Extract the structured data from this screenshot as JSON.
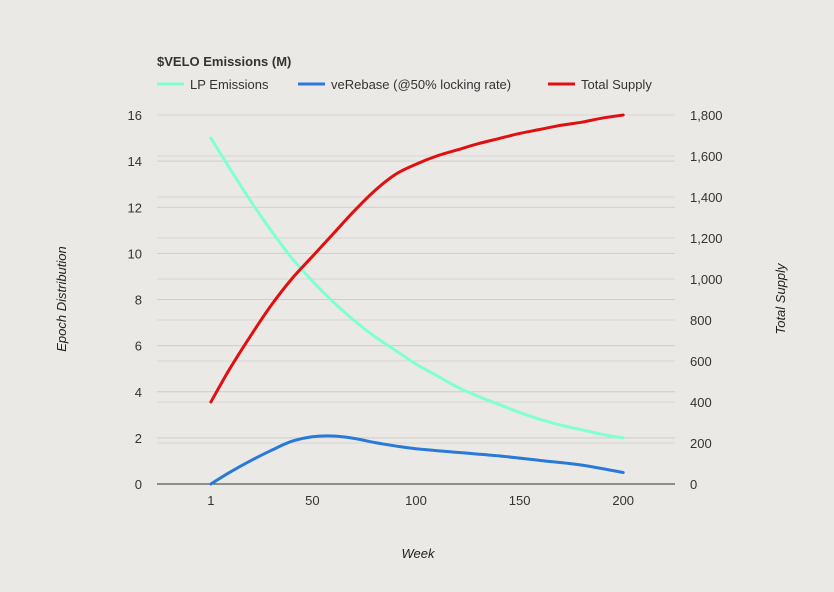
{
  "chart_data": {
    "type": "line",
    "title": "$VELO Emissions (M)",
    "xlabel": "Week",
    "ylabel_left": "Epoch Distribution",
    "ylabel_right": "Total Supply",
    "x_ticks": [
      "1",
      "50",
      "100",
      "150",
      "200"
    ],
    "y_left_ticks": [
      "0",
      "2",
      "4",
      "6",
      "8",
      "10",
      "12",
      "14",
      "16"
    ],
    "y_right_ticks": [
      "0",
      "200",
      "400",
      "600",
      "800",
      "1,000",
      "1,200",
      "1,400",
      "1,600",
      "1,800"
    ],
    "y_left_lim": [
      0,
      16
    ],
    "y_right_lim": [
      0,
      1800
    ],
    "x_lim": [
      -25,
      225
    ],
    "legend_position": "top",
    "grid": true,
    "series": [
      {
        "name": "LP Emissions",
        "axis": "left",
        "color": "#7fffd4",
        "x": [
          1,
          10,
          20,
          30,
          40,
          50,
          60,
          70,
          80,
          90,
          100,
          110,
          120,
          130,
          140,
          150,
          160,
          170,
          180,
          190,
          200
        ],
        "values": [
          15.0,
          13.7,
          12.3,
          11.0,
          9.8,
          8.8,
          7.9,
          7.1,
          6.4,
          5.8,
          5.2,
          4.7,
          4.2,
          3.8,
          3.45,
          3.1,
          2.8,
          2.55,
          2.35,
          2.15,
          2.0
        ]
      },
      {
        "name": "veRebase (@50% locking rate)",
        "axis": "left",
        "color": "#2979d9",
        "x": [
          1,
          10,
          20,
          30,
          40,
          50,
          60,
          70,
          80,
          90,
          100,
          120,
          140,
          160,
          180,
          200
        ],
        "values": [
          0.0,
          0.5,
          1.0,
          1.45,
          1.85,
          2.05,
          2.08,
          1.98,
          1.8,
          1.65,
          1.53,
          1.37,
          1.22,
          1.02,
          0.82,
          0.5
        ]
      },
      {
        "name": "Total Supply",
        "axis": "right",
        "color": "#e01010",
        "x": [
          1,
          10,
          20,
          30,
          40,
          50,
          60,
          70,
          80,
          90,
          100,
          110,
          120,
          130,
          140,
          150,
          160,
          170,
          180,
          190,
          200
        ],
        "values": [
          400,
          560,
          720,
          870,
          1000,
          1110,
          1220,
          1330,
          1430,
          1510,
          1560,
          1600,
          1630,
          1660,
          1685,
          1710,
          1730,
          1750,
          1765,
          1785,
          1800
        ]
      }
    ]
  }
}
